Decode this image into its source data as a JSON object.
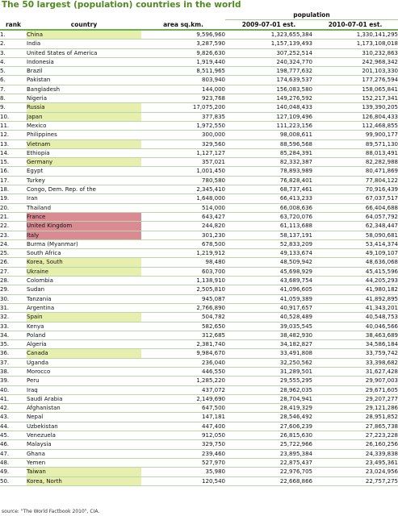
{
  "title": "The 50 largest (population) countries in the world",
  "header": {
    "population_group": "population",
    "rank": "rank",
    "country": "country",
    "area": "area sq.km.",
    "est2009": "2009-07-01 est.",
    "est2010": "2010-07-01 est."
  },
  "colors": {
    "title": "#4f8a1e",
    "highlight_green": "#e6efad",
    "highlight_red": "#d98a93",
    "row_border": "#b8d8a8"
  },
  "rows": [
    {
      "rank": "1.",
      "country": "China",
      "area": "9,596,960",
      "est2009": "1,323,655,384",
      "est2010": "1,330,141,295",
      "highlight": "green"
    },
    {
      "rank": "2.",
      "country": "India",
      "area": "3,287,590",
      "est2009": "1,157,139,493",
      "est2010": "1,173,108,018",
      "highlight": ""
    },
    {
      "rank": "3.",
      "country": "United States of America",
      "area": "9,826,630",
      "est2009": "307,252,514",
      "est2010": "310,232,863",
      "highlight": ""
    },
    {
      "rank": "4.",
      "country": "Indonesia",
      "area": "1,919,440",
      "est2009": "240,324,770",
      "est2010": "242,968,342",
      "highlight": ""
    },
    {
      "rank": "5.",
      "country": "Brazil",
      "area": "8,511,965",
      "est2009": "198,777,632",
      "est2010": "201,103,330",
      "highlight": ""
    },
    {
      "rank": "6.",
      "country": "Pakistan",
      "area": "803,940",
      "est2009": "174,639,537",
      "est2010": "177,276,594",
      "highlight": ""
    },
    {
      "rank": "7.",
      "country": "Bangladesh",
      "area": "144,000",
      "est2009": "156,083,580",
      "est2010": "158,065,841",
      "highlight": ""
    },
    {
      "rank": "8.",
      "country": "Nigeria",
      "area": "923,768",
      "est2009": "149,276,592",
      "est2010": "152,217,341",
      "highlight": ""
    },
    {
      "rank": "9.",
      "country": "Russia",
      "area": "17,075,200",
      "est2009": "140,048,433",
      "est2010": "139,390,205",
      "highlight": "green"
    },
    {
      "rank": "10.",
      "country": "Japan",
      "area": "377,835",
      "est2009": "127,109,496",
      "est2010": "126,804,433",
      "highlight": "green"
    },
    {
      "rank": "11.",
      "country": "Mexico",
      "area": "1,972,550",
      "est2009": "111,223,156",
      "est2010": "112,468,855",
      "highlight": ""
    },
    {
      "rank": "12.",
      "country": "Philippines",
      "area": "300,000",
      "est2009": "98,008,611",
      "est2010": "99,900,177",
      "highlight": ""
    },
    {
      "rank": "13.",
      "country": "Vietnam",
      "area": "329,560",
      "est2009": "88,596,568",
      "est2010": "89,571,130",
      "highlight": "green"
    },
    {
      "rank": "14.",
      "country": "Ethiopia",
      "area": "1,127,127",
      "est2009": "85,284,391",
      "est2010": "88,013,491",
      "highlight": ""
    },
    {
      "rank": "15.",
      "country": "Germany",
      "area": "357,021",
      "est2009": "82,332,387",
      "est2010": "82,282,988",
      "highlight": "green"
    },
    {
      "rank": "16.",
      "country": "Egypt",
      "area": "1,001,450",
      "est2009": "78,893,989",
      "est2010": "80,471,869",
      "highlight": ""
    },
    {
      "rank": "17.",
      "country": "Turkey",
      "area": "780,580",
      "est2009": "76,828,401",
      "est2010": "77,804,122",
      "highlight": ""
    },
    {
      "rank": "18.",
      "country": "Congo, Dem. Rep. of the",
      "area": "2,345,410",
      "est2009": "68,737,461",
      "est2010": "70,916,439",
      "highlight": ""
    },
    {
      "rank": "19.",
      "country": "Iran",
      "area": "1,648,000",
      "est2009": "66,413,233",
      "est2010": "67,037,517",
      "highlight": ""
    },
    {
      "rank": "20.",
      "country": "Thailand",
      "area": "514,000",
      "est2009": "66,008,636",
      "est2010": "66,404,688",
      "highlight": ""
    },
    {
      "rank": "21.",
      "country": "France",
      "area": "643,427",
      "est2009": "63,720,076",
      "est2010": "64,057,792",
      "highlight": "red"
    },
    {
      "rank": "22.",
      "country": "United Kingdom",
      "area": "244,820",
      "est2009": "61,113,688",
      "est2010": "62,348,447",
      "highlight": "red"
    },
    {
      "rank": "23.",
      "country": "Italy",
      "area": "301,230",
      "est2009": "58,137,191",
      "est2010": "58,090,681",
      "highlight": "red"
    },
    {
      "rank": "24.",
      "country": "Burma (Myanmar)",
      "area": "678,500",
      "est2009": "52,833,209",
      "est2010": "53,414,374",
      "highlight": ""
    },
    {
      "rank": "25.",
      "country": "South Africa",
      "area": "1,219,912",
      "est2009": "49,133,674",
      "est2010": "49,109,107",
      "highlight": ""
    },
    {
      "rank": "26.",
      "country": "Korea, South",
      "area": "98,480",
      "est2009": "48,509,942",
      "est2010": "48,636,068",
      "highlight": "green"
    },
    {
      "rank": "27.",
      "country": "Ukraine",
      "area": "603,700",
      "est2009": "45,698,929",
      "est2010": "45,415,596",
      "highlight": "green"
    },
    {
      "rank": "28.",
      "country": "Colombia",
      "area": "1,138,910",
      "est2009": "43,689,754",
      "est2010": "44,205,293",
      "highlight": ""
    },
    {
      "rank": "29.",
      "country": "Sudan",
      "area": "2,505,810",
      "est2009": "41,096,605",
      "est2010": "41,980,182",
      "highlight": ""
    },
    {
      "rank": "30.",
      "country": "Tanzania",
      "area": "945,087",
      "est2009": "41,059,389",
      "est2010": "41,892,895",
      "highlight": ""
    },
    {
      "rank": "31.",
      "country": "Argentina",
      "area": "2,766,890",
      "est2009": "40,917,657",
      "est2010": "41,343,201",
      "highlight": ""
    },
    {
      "rank": "32.",
      "country": "Spain",
      "area": "504,782",
      "est2009": "40,528,489",
      "est2010": "40,548,753",
      "highlight": "green"
    },
    {
      "rank": "33.",
      "country": "Kenya",
      "area": "582,650",
      "est2009": "39,035,545",
      "est2010": "40,046,566",
      "highlight": ""
    },
    {
      "rank": "34.",
      "country": "Poland",
      "area": "312,685",
      "est2009": "38,482,930",
      "est2010": "38,463,689",
      "highlight": ""
    },
    {
      "rank": "35.",
      "country": "Algeria",
      "area": "2,381,740",
      "est2009": "34,182,827",
      "est2010": "34,586,184",
      "highlight": ""
    },
    {
      "rank": "36.",
      "country": "Canada",
      "area": "9,984,670",
      "est2009": "33,491,808",
      "est2010": "33,759,742",
      "highlight": "green"
    },
    {
      "rank": "37.",
      "country": "Uganda",
      "area": "236,040",
      "est2009": "32,250,562",
      "est2010": "33,398,682",
      "highlight": ""
    },
    {
      "rank": "38.",
      "country": "Morocco",
      "area": "446,550",
      "est2009": "31,289,501",
      "est2010": "31,627,428",
      "highlight": ""
    },
    {
      "rank": "39.",
      "country": "Peru",
      "area": "1,285,220",
      "est2009": "29,555,295",
      "est2010": "29,907,003",
      "highlight": ""
    },
    {
      "rank": "40.",
      "country": "Iraq",
      "area": "437,072",
      "est2009": "28,962,035",
      "est2010": "29,671,605",
      "highlight": ""
    },
    {
      "rank": "41.",
      "country": "Saudi Arabia",
      "area": "2,149,690",
      "est2009": "28,704,941",
      "est2010": "29,207,277",
      "highlight": ""
    },
    {
      "rank": "42.",
      "country": "Afghanistan",
      "area": "647,500",
      "est2009": "28,419,329",
      "est2010": "29,121,286",
      "highlight": ""
    },
    {
      "rank": "43.",
      "country": "Nepal",
      "area": "147,181",
      "est2009": "28,546,492",
      "est2010": "28,951,852",
      "highlight": ""
    },
    {
      "rank": "44.",
      "country": "Uzbekistan",
      "area": "447,400",
      "est2009": "27,606,239",
      "est2010": "27,865,738",
      "highlight": ""
    },
    {
      "rank": "45.",
      "country": "Venezuela",
      "area": "912,050",
      "est2009": "26,815,630",
      "est2010": "27,223,228",
      "highlight": ""
    },
    {
      "rank": "46.",
      "country": "Malaysia",
      "area": "329,750",
      "est2009": "25,722,966",
      "est2010": "26,160,256",
      "highlight": ""
    },
    {
      "rank": "47.",
      "country": "Ghana",
      "area": "239,460",
      "est2009": "23,895,384",
      "est2010": "24,339,838",
      "highlight": ""
    },
    {
      "rank": "48.",
      "country": "Yemen",
      "area": "527,970",
      "est2009": "22,875,437",
      "est2010": "23,495,361",
      "highlight": ""
    },
    {
      "rank": "49.",
      "country": "Taiwan",
      "area": "35,980",
      "est2009": "22,976,705",
      "est2010": "23,024,956",
      "highlight": "green"
    },
    {
      "rank": "50.",
      "country": "Korea, North",
      "area": "120,540",
      "est2009": "22,668,866",
      "est2010": "22,757,275",
      "highlight": "green"
    }
  ],
  "source": "source: \"The World Factbook 2010\", CIA."
}
